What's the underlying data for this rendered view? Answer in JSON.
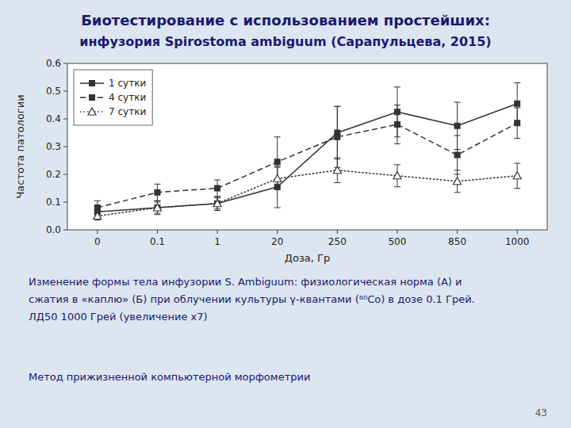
{
  "chart_data": {
    "type": "line",
    "title": "Биотестирование с использованием простейших:",
    "subtitle": "инфузория Spirostoma ambiguum (Сарапульцева, 2015)",
    "x_label": "Доза, Гр",
    "y_label": "Частота патологии",
    "categories": [
      "0",
      "0.1",
      "1",
      "20",
      "250",
      "500",
      "850",
      "1000"
    ],
    "series": [
      {
        "name": "1 сутки",
        "color": "#333333",
        "marker": "square",
        "line_style": "solid",
        "values": [
          0.065,
          0.08,
          0.095,
          0.155,
          0.35,
          0.425,
          0.375,
          0.455
        ],
        "errors": [
          0.02,
          0.025,
          0.025,
          0.075,
          0.095,
          0.09,
          0.085,
          0.075
        ]
      },
      {
        "name": "4 сутки",
        "color": "#333333",
        "marker": "square",
        "line_style": "dashed",
        "values": [
          0.08,
          0.135,
          0.15,
          0.245,
          0.335,
          0.38,
          0.27,
          0.385
        ],
        "errors": [
          0.025,
          0.03,
          0.03,
          0.09,
          0.11,
          0.07,
          0.07,
          0.055
        ]
      },
      {
        "name": "7 сутки",
        "color": "#333333",
        "marker": "triangle",
        "line_style": "dotted",
        "values": [
          0.05,
          0.08,
          0.095,
          0.185,
          0.215,
          0.195,
          0.175,
          0.195
        ],
        "errors": [
          0.015,
          0.02,
          0.02,
          0.04,
          0.045,
          0.04,
          0.04,
          0.045
        ]
      }
    ],
    "ylim": [
      0.0,
      0.6
    ],
    "yticks": [
      {
        "value": 0.0,
        "label": "0.0"
      },
      0.1,
      0.2,
      0.3,
      0.4,
      0.5,
      0.6
    ],
    "grid": false,
    "legend": "upper left",
    "annotations": [
      "Изменение формы тела инфузории S. Ambiguum: физиологическая норма (А) и",
      "сжатия в «каплю» (Б) при облучении культуры γ-квантами (⁶⁰Co) в дозе 0.1 Грей.",
      "ЛД50 1000 Грей (увеличение х7)",
      "Метод прижизненной компьютерной морфометрии",
      "43"
    ]
  }
}
